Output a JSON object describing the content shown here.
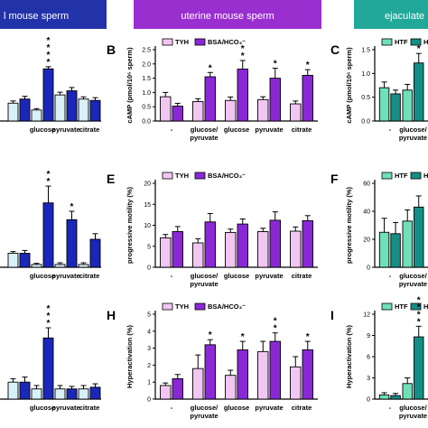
{
  "headers": [
    {
      "text": "l mouse sperm",
      "color": "#2233aa"
    },
    {
      "text": "uterine mouse sperm",
      "color": "#9a2fd0"
    },
    {
      "text": "ejaculate",
      "color": "#22a898"
    }
  ],
  "colors": {
    "left_light": "#d8f0f8",
    "left_dark": "#1a27b8",
    "mid_light": "#f2c6f2",
    "mid_dark": "#8a28d6",
    "right_light": "#6fe0b8",
    "right_dark": "#138f86"
  },
  "chart_data": [
    {
      "id": "A",
      "letter": "",
      "type": "bar",
      "column": "left",
      "categories": [
        "",
        "glucose",
        "pyruvate",
        "citrate"
      ],
      "series": [
        {
          "values": [
            0.65,
            0.4,
            0.95,
            0.8
          ]
        },
        {
          "values": [
            0.8,
            1.9,
            1.1,
            0.75
          ]
        }
      ],
      "errors": [
        [
          0.08,
          0.05,
          0.1,
          0.08
        ],
        [
          0.1,
          0.08,
          0.12,
          0.1
        ]
      ],
      "stars": [
        [
          "",
          ""
        ],
        [
          "",
          "****"
        ],
        [
          "",
          ""
        ],
        [
          "",
          ""
        ]
      ],
      "ylim": [
        0,
        2.6
      ],
      "yticks": [],
      "ylabel": "",
      "legend": []
    },
    {
      "id": "B",
      "letter": "B",
      "type": "bar",
      "column": "mid",
      "categories": [
        "-",
        "glucose/ pyruvate",
        "glucose",
        "pyruvate",
        "citrate"
      ],
      "series": [
        {
          "name": "TYH",
          "values": [
            0.85,
            0.68,
            0.72,
            0.75,
            0.6
          ]
        },
        {
          "name": "BSA/HCO₃⁻",
          "values": [
            0.52,
            1.55,
            1.82,
            1.5,
            1.6
          ]
        }
      ],
      "errors": [
        [
          0.15,
          0.1,
          0.12,
          0.1,
          0.1
        ],
        [
          0.1,
          0.15,
          0.3,
          0.35,
          0.2
        ]
      ],
      "stars": [
        [
          "",
          ""
        ],
        [
          "",
          "*"
        ],
        [
          "",
          "**"
        ],
        [
          "",
          "*"
        ],
        [
          "",
          "*"
        ]
      ],
      "ylim": [
        0,
        2.5
      ],
      "yticks": [
        0.0,
        0.5,
        1.0,
        1.5,
        2.0,
        2.5
      ],
      "ylabel": "cAMP (pmol/10⁶ sperm)",
      "legend": [
        "TYH",
        "BSA/HCO₃⁻"
      ]
    },
    {
      "id": "C",
      "letter": "C",
      "type": "bar",
      "column": "right",
      "categories": [
        "-",
        "glucose/ pyruvate"
      ],
      "series": [
        {
          "name": "HTF",
          "values": [
            0.7,
            0.65
          ]
        },
        {
          "name": "HSA/HCO₃⁻",
          "values": [
            0.57,
            1.22
          ]
        }
      ],
      "errors": [
        [
          0.12,
          0.12
        ],
        [
          0.08,
          0.2
        ]
      ],
      "stars": [
        [
          "",
          ""
        ],
        [
          "",
          "*"
        ]
      ],
      "ylim": [
        0,
        1.5
      ],
      "yticks": [
        0.0,
        0.5,
        1.0,
        1.5
      ],
      "ylabel": "cAMP (pmol/10⁶ sperm)",
      "legend": [
        "HTF",
        "HSA/HCO₃⁻"
      ]
    },
    {
      "id": "D",
      "letter": "",
      "type": "bar",
      "column": "left",
      "categories": [
        "",
        "glucose",
        "pyruvate",
        "citrate"
      ],
      "series": [
        {
          "values": [
            2.5,
            0.5,
            0.5,
            0.5
          ]
        },
        {
          "values": [
            2.5,
            11.5,
            8.5,
            5.0
          ]
        }
      ],
      "errors": [
        [
          0.3,
          0.2,
          0.3,
          0.3
        ],
        [
          0.5,
          3.0,
          1.5,
          1.0
        ]
      ],
      "stars": [
        [
          "",
          ""
        ],
        [
          "",
          "**"
        ],
        [
          "",
          "*"
        ],
        [
          "",
          ""
        ]
      ],
      "ylim": [
        0,
        15
      ],
      "yticks": [],
      "ylabel": "",
      "legend": []
    },
    {
      "id": "E",
      "letter": "E",
      "type": "bar",
      "column": "mid",
      "categories": [
        "-",
        "glucose/ pyruvate",
        "glucose",
        "pyruvate",
        "citrate"
      ],
      "series": [
        {
          "name": "TYH",
          "values": [
            7.0,
            5.8,
            8.3,
            8.5,
            8.6
          ]
        },
        {
          "name": "BSA/HCO₃⁻",
          "values": [
            8.5,
            10.8,
            10.3,
            11.2,
            11.1
          ]
        }
      ],
      "errors": [
        [
          0.8,
          1.0,
          0.8,
          0.8,
          1.0
        ],
        [
          1.2,
          2.0,
          1.2,
          2.0,
          1.2
        ]
      ],
      "stars": [
        [
          "",
          ""
        ],
        [
          "",
          ""
        ],
        [
          "",
          ""
        ],
        [
          "",
          ""
        ],
        [
          "",
          ""
        ]
      ],
      "ylim": [
        0,
        20
      ],
      "yticks": [
        0,
        5,
        10,
        15,
        20
      ],
      "ylabel": "progressive motility (%)",
      "legend": [
        "TYH",
        "BSA/HCO₃⁻"
      ]
    },
    {
      "id": "F",
      "letter": "F",
      "type": "bar",
      "column": "right",
      "categories": [
        "-",
        "glucose/ pyruvate"
      ],
      "series": [
        {
          "name": "HTF",
          "values": [
            25,
            33
          ]
        },
        {
          "name": "HSA/HCO₃⁻",
          "values": [
            24,
            43
          ]
        }
      ],
      "errors": [
        [
          10,
          8
        ],
        [
          8,
          8
        ]
      ],
      "stars": [
        [
          "",
          ""
        ],
        [
          "",
          ""
        ]
      ],
      "ylim": [
        0,
        60
      ],
      "yticks": [
        0,
        20,
        40,
        60
      ],
      "ylabel": "progressive motility (%)",
      "legend": [
        "HTF",
        "HSA/HCO₃⁻"
      ]
    },
    {
      "id": "G",
      "letter": "",
      "type": "bar",
      "column": "left",
      "categories": [
        "",
        "glucose",
        "pyruvate",
        "citrate"
      ],
      "series": [
        {
          "values": [
            1.0,
            0.6,
            0.6,
            0.6
          ]
        },
        {
          "values": [
            1.0,
            3.6,
            0.6,
            0.7
          ]
        }
      ],
      "errors": [
        [
          0.2,
          0.2,
          0.2,
          0.2
        ],
        [
          0.3,
          0.6,
          0.15,
          0.2
        ]
      ],
      "stars": [
        [
          "",
          ""
        ],
        [
          "",
          "***"
        ],
        [
          "",
          ""
        ],
        [
          "",
          ""
        ]
      ],
      "ylim": [
        0,
        5
      ],
      "yticks": [],
      "ylabel": "",
      "legend": []
    },
    {
      "id": "H",
      "letter": "H",
      "type": "bar",
      "column": "mid",
      "categories": [
        "-",
        "glucose/ pyruvate",
        "glucose",
        "pyruvate",
        "citrate"
      ],
      "series": [
        {
          "name": "TYH",
          "values": [
            0.8,
            1.8,
            1.4,
            2.8,
            1.9
          ]
        },
        {
          "name": "BSA/HCO₃⁻",
          "values": [
            1.2,
            3.2,
            2.9,
            3.4,
            2.9
          ]
        }
      ],
      "errors": [
        [
          0.15,
          0.8,
          0.3,
          0.6,
          0.6
        ],
        [
          0.25,
          0.3,
          0.5,
          0.5,
          0.5
        ]
      ],
      "stars": [
        [
          "",
          ""
        ],
        [
          "",
          "*"
        ],
        [
          "",
          "*"
        ],
        [
          "",
          "**"
        ],
        [
          "",
          "*"
        ]
      ],
      "ylim": [
        0,
        5
      ],
      "yticks": [
        0,
        1,
        2,
        3,
        4,
        5
      ],
      "ylabel": "Hyperactivation (%)",
      "legend": [
        "TYH",
        "BSA/HCO₃⁻"
      ]
    },
    {
      "id": "I",
      "letter": "I",
      "type": "bar",
      "column": "right",
      "categories": [
        "-",
        "glucose/ pyruvate"
      ],
      "series": [
        {
          "name": "HTF",
          "values": [
            0.6,
            2.2
          ]
        },
        {
          "name": "HSA/HCO₃⁻",
          "values": [
            0.5,
            8.8
          ]
        }
      ],
      "errors": [
        [
          0.3,
          0.8
        ],
        [
          0.3,
          1.5
        ]
      ],
      "stars": [
        [
          "",
          ""
        ],
        [
          "",
          "****"
        ]
      ],
      "ylim": [
        0,
        12
      ],
      "yticks": [
        0,
        3,
        6,
        9,
        12
      ],
      "ylabel": "Hyperactivation (%)",
      "legend": [
        "HTF",
        "HSA/HCO₃⁻"
      ]
    }
  ]
}
